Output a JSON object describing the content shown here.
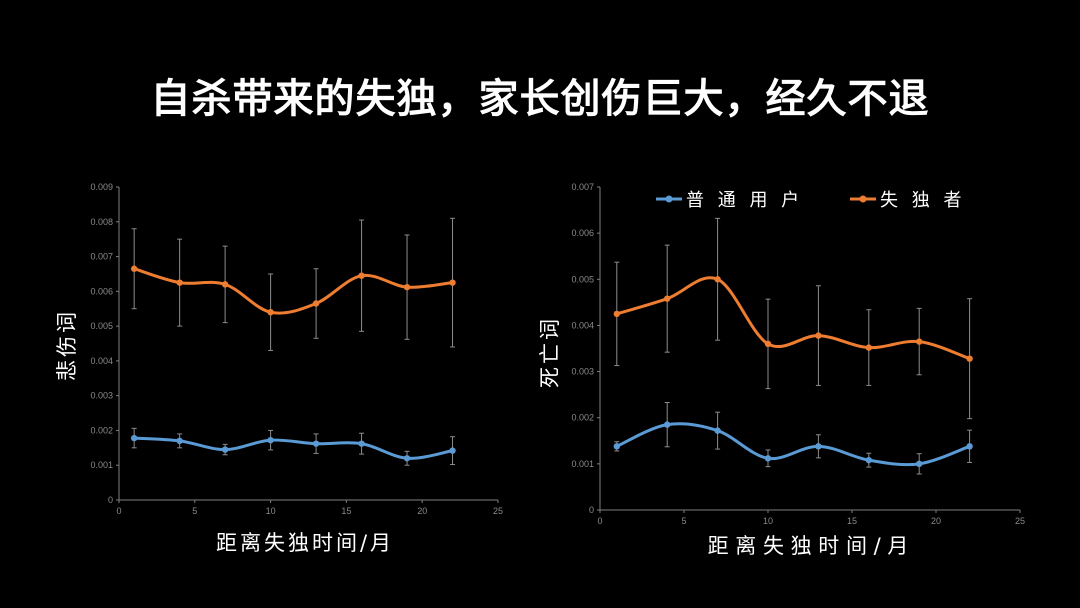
{
  "page": {
    "title": "自杀带来的失独，家长创伤巨大，经久不退"
  },
  "colors": {
    "background": "#000000",
    "normal_user": "#5b9bd5",
    "bereaved": "#ed7d31",
    "axis": "#7f7f7f",
    "error_bar": "#8c8c8c"
  },
  "legend": {
    "items": [
      {
        "label": "普 通 用 户",
        "color": "#5b9bd5"
      },
      {
        "label": "失 独 者",
        "color": "#ed7d31"
      }
    ]
  },
  "chart_data": [
    {
      "type": "line",
      "smooth": true,
      "xlabel": "距离失独时间/月",
      "ylabel": "悲伤词",
      "xlim": [
        0,
        25
      ],
      "ylim": [
        0,
        0.009
      ],
      "xticks": [
        0,
        5,
        10,
        15,
        20,
        25
      ],
      "yticks": [
        0,
        0.001,
        0.002,
        0.003,
        0.004,
        0.005,
        0.006,
        0.007,
        0.008,
        0.009
      ],
      "ytick_labels": [
        "0",
        "0.001",
        "0.002",
        "0.003",
        "0.004",
        "0.005",
        "0.006",
        "0.007",
        "0.008",
        "0.009"
      ],
      "x": [
        1,
        4,
        7,
        10,
        13,
        16,
        19,
        22
      ],
      "series": [
        {
          "name": "普通用户",
          "color": "#5b9bd5",
          "values": [
            0.00178,
            0.0017,
            0.00145,
            0.00172,
            0.00162,
            0.00162,
            0.0012,
            0.00142
          ],
          "error": [
            0.00028,
            0.0002,
            0.00015,
            0.00028,
            0.00028,
            0.0003,
            0.0002,
            0.0004
          ]
        },
        {
          "name": "失独者",
          "color": "#ed7d31",
          "values": [
            0.00665,
            0.00625,
            0.0062,
            0.0054,
            0.00565,
            0.00645,
            0.00612,
            0.00625
          ],
          "error": [
            0.00115,
            0.00125,
            0.0011,
            0.0011,
            0.001,
            0.0016,
            0.0015,
            0.00185
          ]
        }
      ]
    },
    {
      "type": "line",
      "smooth": true,
      "xlabel": "距 离 失 独 时 间 / 月",
      "ylabel": "死亡词",
      "xlim": [
        0,
        25
      ],
      "ylim": [
        0,
        0.007
      ],
      "xticks": [
        0,
        5,
        10,
        15,
        20,
        25
      ],
      "yticks": [
        0,
        0.001,
        0.002,
        0.003,
        0.004,
        0.005,
        0.006,
        0.007
      ],
      "ytick_labels": [
        "0",
        "0.001",
        "0.002",
        "0.003",
        "0.004",
        "0.005",
        "0.006",
        "0.007"
      ],
      "x": [
        1,
        4,
        7,
        10,
        13,
        16,
        19,
        22
      ],
      "series": [
        {
          "name": "普通用户",
          "color": "#5b9bd5",
          "values": [
            0.00138,
            0.00185,
            0.00172,
            0.00112,
            0.00138,
            0.00108,
            0.001,
            0.00138
          ],
          "error": [
            0.0001,
            0.00048,
            0.0004,
            0.00018,
            0.00025,
            0.00015,
            0.00022,
            0.00035
          ]
        },
        {
          "name": "失独者",
          "color": "#ed7d31",
          "values": [
            0.00425,
            0.00458,
            0.005,
            0.0036,
            0.00378,
            0.00352,
            0.00365,
            0.00328
          ],
          "error": [
            0.00112,
            0.00116,
            0.00132,
            0.00097,
            0.00108,
            0.00082,
            0.00072,
            0.0013
          ]
        }
      ]
    }
  ]
}
